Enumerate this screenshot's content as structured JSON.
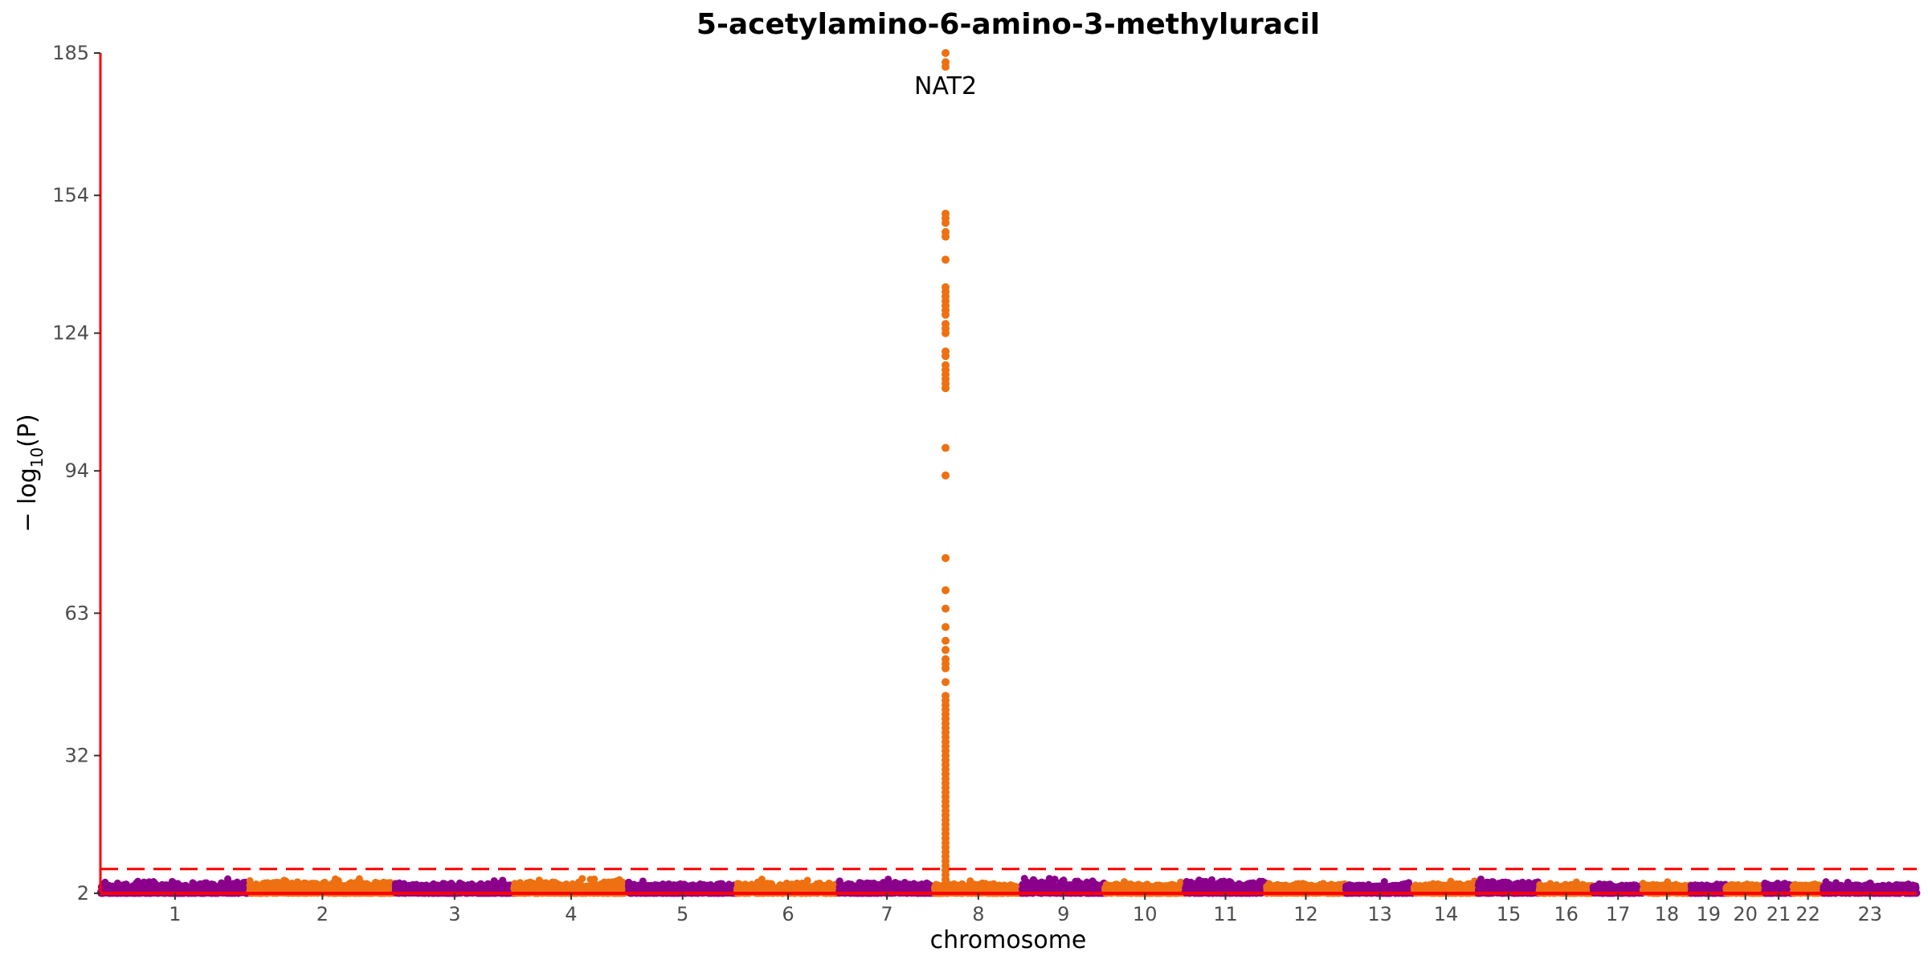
{
  "chart_data": {
    "type": "scatter",
    "title": "5-acetylamino-6-amino-3-methyluracil",
    "xlabel": "chromosome",
    "ylabel": "−log10(P)",
    "ylabel_base": "− log",
    "ylabel_sub": "10",
    "ylabel_tail": "(P)",
    "yticks": [
      2,
      32,
      63,
      94,
      124,
      154,
      185
    ],
    "ylim": [
      2,
      185
    ],
    "threshold": 7.3,
    "grid": false,
    "legend": "none",
    "colors": {
      "odd": "#8B008B",
      "even": "#EE7011",
      "axis": "#FF0000",
      "threshold": "#FF0000"
    },
    "chromosomes": [
      "1",
      "2",
      "3",
      "4",
      "5",
      "6",
      "7",
      "8",
      "9",
      "10",
      "11",
      "12",
      "13",
      "14",
      "15",
      "16",
      "17",
      "18",
      "19",
      "20",
      "21",
      "22",
      "23"
    ],
    "chromosome_lengths_mb": [
      249,
      243,
      198,
      191,
      181,
      171,
      159,
      146,
      138,
      134,
      135,
      133,
      114,
      107,
      102,
      90,
      83,
      80,
      59,
      64,
      47,
      51,
      156
    ],
    "background_max_by_chromosome": [
      5.5,
      5.2,
      5.0,
      5.3,
      4.8,
      5.1,
      5.2,
      4.9,
      5.6,
      4.7,
      5.5,
      4.9,
      4.6,
      4.8,
      5.3,
      4.7,
      4.8,
      4.6,
      5.0,
      4.6,
      5.0,
      4.6,
      4.8
    ],
    "peak": {
      "chromosome": "8",
      "position_mb": 18.3,
      "label": "NAT2",
      "values": [
        185,
        183,
        182,
        150,
        149,
        148,
        146,
        145,
        140,
        134,
        133,
        132,
        131,
        130,
        129,
        128,
        126,
        125,
        124,
        120,
        119,
        117,
        116,
        115,
        114,
        113,
        112,
        99,
        93,
        75,
        68,
        64,
        60,
        57,
        55,
        53,
        52,
        51,
        48,
        45,
        44,
        43,
        42,
        41,
        40,
        39,
        38,
        37,
        36,
        35,
        34,
        33,
        32,
        31,
        30,
        29,
        28,
        27,
        26,
        25,
        24,
        23,
        22,
        21,
        20,
        19,
        18,
        17,
        16,
        15,
        14,
        13,
        12,
        11,
        10,
        9,
        8,
        7,
        6,
        5,
        4,
        3
      ]
    }
  }
}
